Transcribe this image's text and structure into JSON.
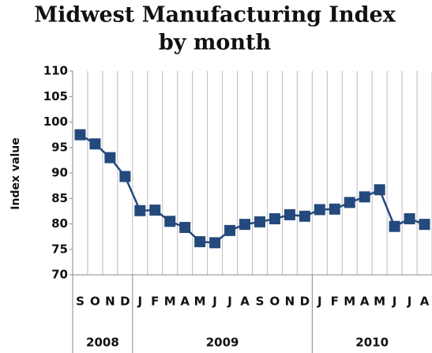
{
  "chart_data": {
    "type": "line",
    "title": "Midwest Manufacturing Index",
    "subtitle": "by month",
    "y_label": "Index value",
    "groups": [
      {
        "label": "2008",
        "categories": [
          "S",
          "O",
          "N",
          "D"
        ]
      },
      {
        "label": "2009",
        "categories": [
          "J",
          "F",
          "M",
          "A",
          "M",
          "J",
          "J",
          "A",
          "S",
          "O",
          "N",
          "D"
        ]
      },
      {
        "label": "2010",
        "categories": [
          "J",
          "F",
          "M",
          "A",
          "M",
          "J",
          "J",
          "A"
        ]
      }
    ],
    "series": [
      {
        "name": "Index value",
        "color": "#24497c",
        "values": [
          97.5,
          95.7,
          93,
          89.3,
          82.6,
          82.7,
          80.5,
          79.3,
          76.5,
          76.3,
          78.7,
          79.9,
          80.4,
          81,
          81.8,
          81.5,
          82.8,
          82.9,
          84.2,
          85.3,
          86.7,
          79.5,
          81,
          79.9
        ]
      }
    ],
    "ylim": [
      70,
      110
    ],
    "yticks": [
      70,
      75,
      80,
      85,
      90,
      95,
      100,
      105,
      110
    ],
    "grid": "x"
  }
}
